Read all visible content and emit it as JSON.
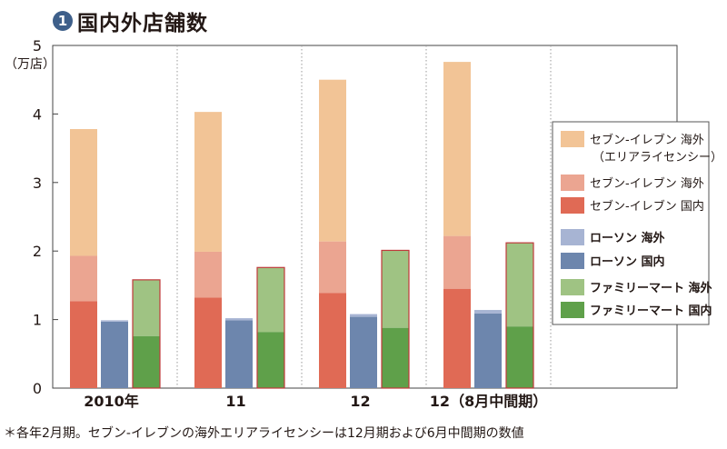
{
  "title": {
    "badge": "1",
    "text": "国内外店舗数"
  },
  "footnote": "＊各年2月期。セブン-イレブンの海外エリアライセンシーは12月期および6月中間期の数値",
  "chart_data": {
    "type": "bar",
    "stacked": true,
    "unit_label": "（万店）",
    "ylim": [
      0,
      5
    ],
    "yticks": [
      "0",
      "1",
      "2",
      "3",
      "4",
      "5"
    ],
    "grid": "vertical dotted separators between periods",
    "legend_position": "right",
    "categories": [
      "2010年",
      "11",
      "12",
      "12（8月中間期）"
    ],
    "groups": [
      {
        "company": "セブン-イレブン",
        "series": [
          {
            "name": "セブン-イレブン 国内",
            "color": "#e06a55",
            "values": [
              1.27,
              1.32,
              1.39,
              1.45
            ]
          },
          {
            "name": "セブン-イレブン 海外",
            "color": "#eba591",
            "values": [
              0.66,
              0.67,
              0.75,
              0.77
            ]
          },
          {
            "name": "セブン-イレブン 海外（エリアライセンシー）",
            "color": "#f2c496",
            "values": [
              1.85,
              2.04,
              2.36,
              2.54
            ]
          }
        ]
      },
      {
        "company": "ローソン",
        "series": [
          {
            "name": "ローソン 国内",
            "color": "#6d86ad",
            "values": [
              0.97,
              0.99,
              1.04,
              1.09
            ]
          },
          {
            "name": "ローソン 海外",
            "color": "#a7b4d3",
            "values": [
              0.02,
              0.03,
              0.04,
              0.05
            ]
          }
        ]
      },
      {
        "company": "ファミリーマート",
        "series": [
          {
            "name": "ファミリーマート 国内",
            "color": "#5fa04a",
            "values": [
              0.76,
              0.82,
              0.88,
              0.9
            ]
          },
          {
            "name": "ファミリーマート 海外",
            "color": "#9fc383",
            "values": [
              0.82,
              0.94,
              1.13,
              1.22
            ]
          }
        ]
      }
    ],
    "legend": [
      {
        "label": "セブン-イレブン 海外",
        "sub": "（エリアライセンシー）",
        "color": "#f2c496",
        "text_color": "#231815"
      },
      {
        "label": "セブン-イレブン 海外",
        "sub": "",
        "color": "#eba591",
        "text_color": "#231815"
      },
      {
        "label": "セブン-イレブン 国内",
        "sub": "",
        "color": "#e06a55",
        "text_color": "#231815"
      },
      {
        "label": "ローソン 海外",
        "sub": "",
        "color": "#a7b4d3",
        "text_color": "#231815"
      },
      {
        "label": "ローソン 国内",
        "sub": "",
        "color": "#6d86ad",
        "text_color": "#231815"
      },
      {
        "label": "ファミリーマート 海外",
        "sub": "",
        "color": "#9fc383",
        "text_color": "#3f8a2e"
      },
      {
        "label": "ファミリーマート 国内",
        "sub": "",
        "color": "#5fa04a",
        "text_color": "#3f8a2e"
      }
    ]
  }
}
